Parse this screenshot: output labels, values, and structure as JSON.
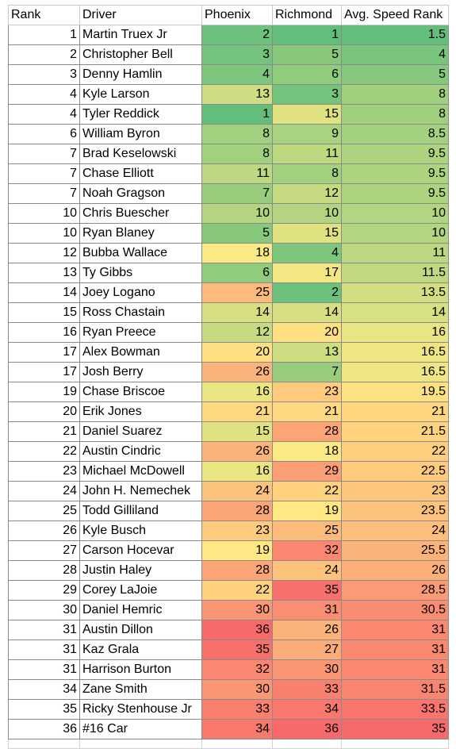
{
  "headers": [
    "Rank",
    "Driver",
    "Phoenix",
    "Richmond",
    "Avg. Speed Rank"
  ],
  "rows": [
    {
      "rank": "1",
      "driver": "Martin Truex Jr",
      "phoenix": "2",
      "richmond": "1",
      "avg": "1.5"
    },
    {
      "rank": "2",
      "driver": "Christopher Bell",
      "phoenix": "3",
      "richmond": "5",
      "avg": "4"
    },
    {
      "rank": "3",
      "driver": "Denny Hamlin",
      "phoenix": "4",
      "richmond": "6",
      "avg": "5"
    },
    {
      "rank": "4",
      "driver": "Kyle Larson",
      "phoenix": "13",
      "richmond": "3",
      "avg": "8"
    },
    {
      "rank": "4",
      "driver": "Tyler Reddick",
      "phoenix": "1",
      "richmond": "15",
      "avg": "8"
    },
    {
      "rank": "6",
      "driver": "William Byron",
      "phoenix": "8",
      "richmond": "9",
      "avg": "8.5"
    },
    {
      "rank": "7",
      "driver": "Brad Keselowski",
      "phoenix": "8",
      "richmond": "11",
      "avg": "9.5"
    },
    {
      "rank": "7",
      "driver": "Chase Elliott",
      "phoenix": "11",
      "richmond": "8",
      "avg": "9.5"
    },
    {
      "rank": "7",
      "driver": "Noah Gragson",
      "phoenix": "7",
      "richmond": "12",
      "avg": "9.5"
    },
    {
      "rank": "10",
      "driver": "Chris Buescher",
      "phoenix": "10",
      "richmond": "10",
      "avg": "10"
    },
    {
      "rank": "10",
      "driver": "Ryan Blaney",
      "phoenix": "5",
      "richmond": "15",
      "avg": "10"
    },
    {
      "rank": "12",
      "driver": "Bubba Wallace",
      "phoenix": "18",
      "richmond": "4",
      "avg": "11"
    },
    {
      "rank": "13",
      "driver": "Ty Gibbs",
      "phoenix": "6",
      "richmond": "17",
      "avg": "11.5"
    },
    {
      "rank": "14",
      "driver": "Joey Logano",
      "phoenix": "25",
      "richmond": "2",
      "avg": "13.5"
    },
    {
      "rank": "15",
      "driver": "Ross Chastain",
      "phoenix": "14",
      "richmond": "14",
      "avg": "14"
    },
    {
      "rank": "16",
      "driver": "Ryan Preece",
      "phoenix": "12",
      "richmond": "20",
      "avg": "16"
    },
    {
      "rank": "17",
      "driver": "Alex Bowman",
      "phoenix": "20",
      "richmond": "13",
      "avg": "16.5"
    },
    {
      "rank": "17",
      "driver": "Josh Berry",
      "phoenix": "26",
      "richmond": "7",
      "avg": "16.5"
    },
    {
      "rank": "19",
      "driver": "Chase Briscoe",
      "phoenix": "16",
      "richmond": "23",
      "avg": "19.5"
    },
    {
      "rank": "20",
      "driver": "Erik Jones",
      "phoenix": "21",
      "richmond": "21",
      "avg": "21"
    },
    {
      "rank": "21",
      "driver": "Daniel Suarez",
      "phoenix": "15",
      "richmond": "28",
      "avg": "21.5"
    },
    {
      "rank": "22",
      "driver": "Austin Cindric",
      "phoenix": "26",
      "richmond": "18",
      "avg": "22"
    },
    {
      "rank": "23",
      "driver": "Michael McDowell",
      "phoenix": "16",
      "richmond": "29",
      "avg": "22.5"
    },
    {
      "rank": "24",
      "driver": "John H. Nemechek",
      "phoenix": "24",
      "richmond": "22",
      "avg": "23"
    },
    {
      "rank": "25",
      "driver": "Todd Gilliland",
      "phoenix": "28",
      "richmond": "19",
      "avg": "23.5"
    },
    {
      "rank": "26",
      "driver": "Kyle Busch",
      "phoenix": "23",
      "richmond": "25",
      "avg": "24"
    },
    {
      "rank": "27",
      "driver": "Carson Hocevar",
      "phoenix": "19",
      "richmond": "32",
      "avg": "25.5"
    },
    {
      "rank": "28",
      "driver": "Justin Haley",
      "phoenix": "28",
      "richmond": "24",
      "avg": "26"
    },
    {
      "rank": "29",
      "driver": "Corey LaJoie",
      "phoenix": "22",
      "richmond": "35",
      "avg": "28.5"
    },
    {
      "rank": "30",
      "driver": "Daniel Hemric",
      "phoenix": "30",
      "richmond": "31",
      "avg": "30.5"
    },
    {
      "rank": "31",
      "driver": "Austin Dillon",
      "phoenix": "36",
      "richmond": "26",
      "avg": "31"
    },
    {
      "rank": "31",
      "driver": "Kaz Grala",
      "phoenix": "35",
      "richmond": "27",
      "avg": "31"
    },
    {
      "rank": "31",
      "driver": "Harrison Burton",
      "phoenix": "32",
      "richmond": "30",
      "avg": "31"
    },
    {
      "rank": "34",
      "driver": "Zane Smith",
      "phoenix": "30",
      "richmond": "33",
      "avg": "31.5"
    },
    {
      "rank": "35",
      "driver": "Ricky Stenhouse Jr",
      "phoenix": "33",
      "richmond": "34",
      "avg": "33.5"
    },
    {
      "rank": "36",
      "driver": "#16 Car",
      "phoenix": "34",
      "richmond": "36",
      "avg": "35"
    }
  ],
  "color_scale": {
    "low": "#63be7b",
    "mid": "#ffeb84",
    "high": "#f8696b"
  }
}
